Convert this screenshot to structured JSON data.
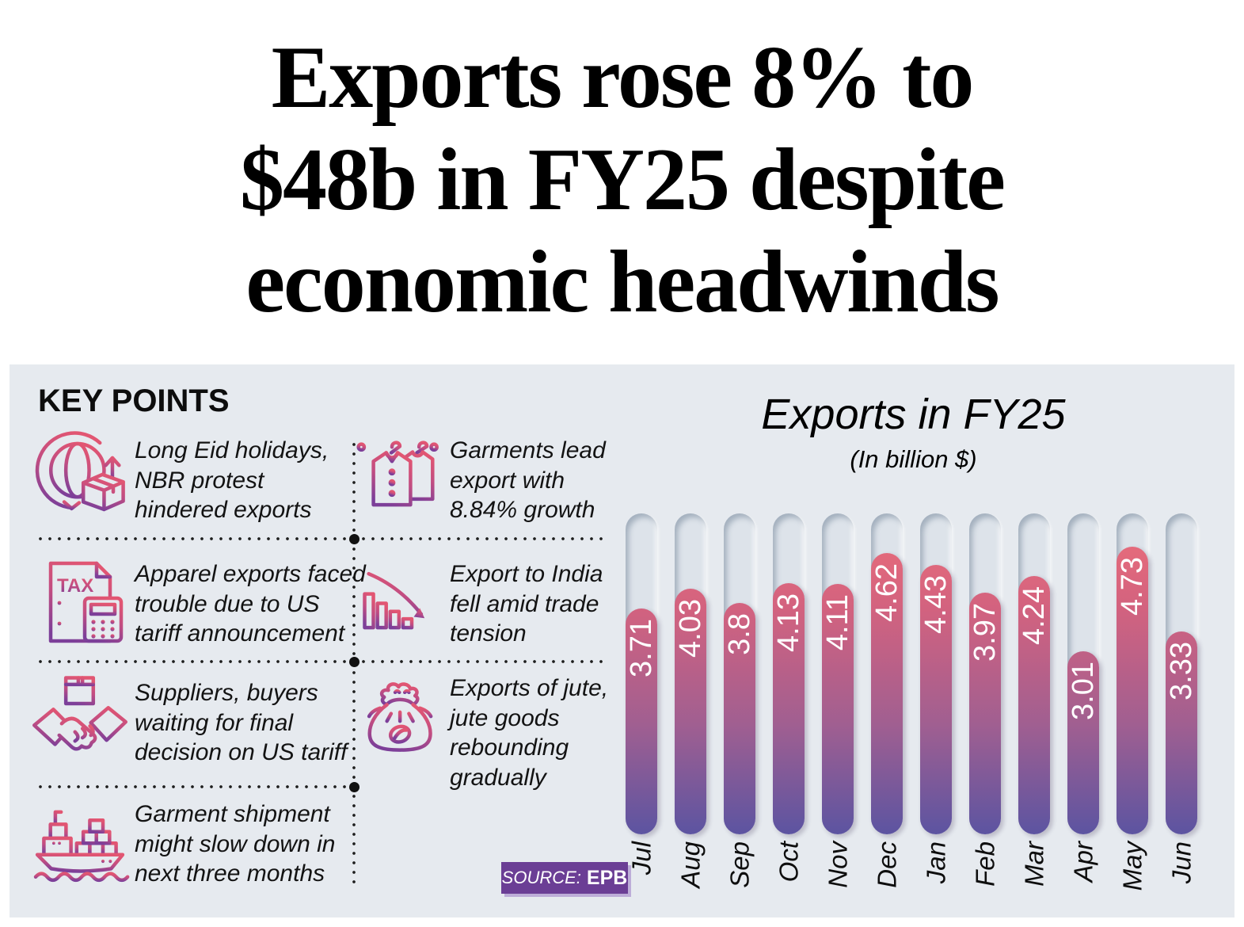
{
  "headline": {
    "lines": [
      "Exports rose 8% to",
      "$48b in FY25 despite",
      "economic headwinds"
    ]
  },
  "key_points": {
    "heading": "KEY POINTS",
    "items": [
      {
        "icon": "globe-export-icon",
        "text": "Long Eid holidays, NBR protest hindered exports"
      },
      {
        "icon": "garments-hanger-icon",
        "text": "Garments lead export with 8.84% growth"
      },
      {
        "icon": "tax-document-icon",
        "text": "Apparel exports faced trouble due to US tariff announcement"
      },
      {
        "icon": "declining-chart-icon",
        "text": "Export to India fell amid trade tension"
      },
      {
        "icon": "handshake-icon",
        "text": "Suppliers, buyers waiting for final decision on US tariff"
      },
      {
        "icon": "jute-sack-icon",
        "text": "Exports of jute, jute goods rebounding gradually"
      },
      {
        "icon": "cargo-ship-icon",
        "text": "Garment shipment might slow down in next three months"
      }
    ]
  },
  "chart": {
    "title": "Exports in FY25",
    "subtitle": "(In billion $)",
    "source_label": "SOURCE:",
    "source_value": "EPB"
  },
  "chart_data": {
    "type": "bar",
    "title": "Exports in FY25",
    "subtitle": "(In billion $)",
    "unit": "billion $",
    "categories": [
      "Jul",
      "Aug",
      "Sep",
      "Oct",
      "Nov",
      "Dec",
      "Jan",
      "Feb",
      "Mar",
      "Apr",
      "May",
      "Jun"
    ],
    "values": [
      3.71,
      4.03,
      3.8,
      4.13,
      4.11,
      4.62,
      4.43,
      3.97,
      4.24,
      3.01,
      4.73,
      3.33
    ],
    "ylim": [
      0,
      5.27
    ],
    "grid": false,
    "legend": "none",
    "value_labels": "rotated-90-white-inside-bar-top",
    "category_labels": "rotated-90-italic-below-bars",
    "colors": {
      "bar_gradient_top": "#ee6f7a",
      "bar_gradient_mid": "#a05f91",
      "bar_gradient_bottom": "#5c54a1",
      "track": "#dde3ea",
      "panel_background": "#e6eaef",
      "icon_gradient_start": "#e25672",
      "icon_gradient_end": "#7c3f99",
      "source_badge": "#6b3e95"
    }
  }
}
